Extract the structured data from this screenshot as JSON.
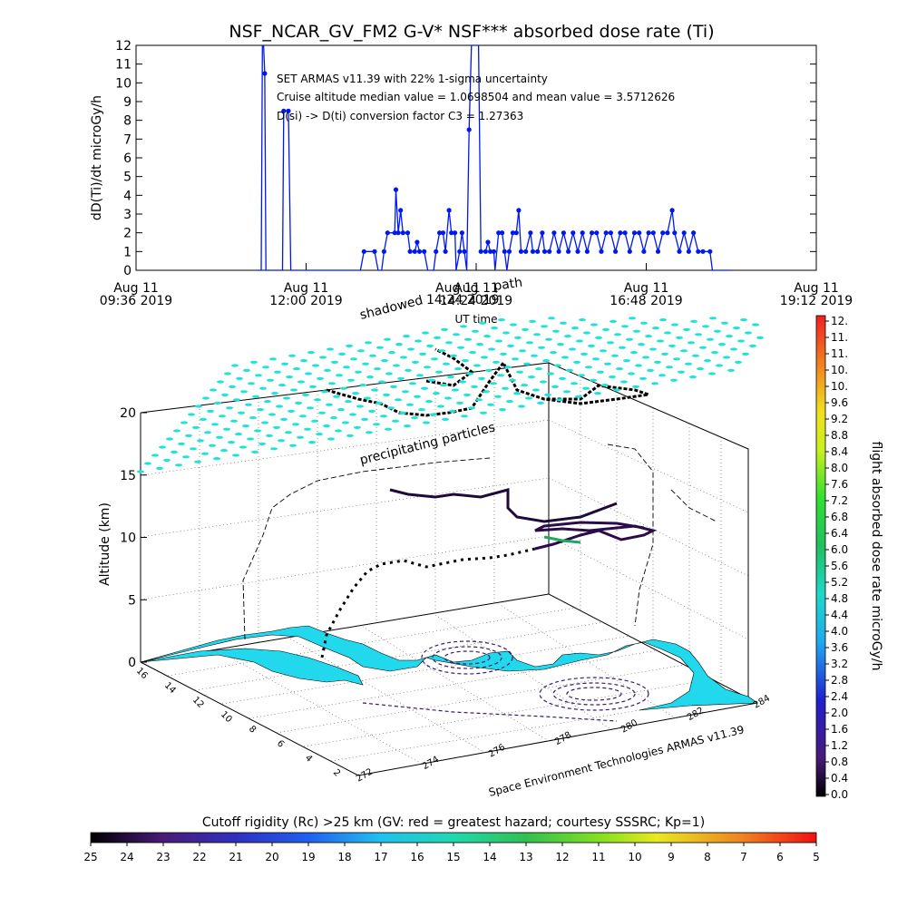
{
  "chart_data": [
    {
      "type": "line",
      "title": "NSF_NCAR_GV_FM2 G-V* NSF*** absorbed dose rate (Ti)",
      "ylabel": "dD(Ti)/dt microGy/h",
      "xlabel": "UT time",
      "ylim": [
        0,
        12
      ],
      "yticks": [
        "0",
        "1",
        "2",
        "3",
        "4",
        "5",
        "6",
        "7",
        "8",
        "9",
        "10",
        "11",
        "12"
      ],
      "xticks": [
        {
          "t": 0,
          "line1": "Aug 11",
          "line2": "09:36 2019"
        },
        {
          "t": 144,
          "line1": "Aug 11",
          "line2": "12:00 2019"
        },
        {
          "t": 288,
          "line1": "Aug 11",
          "line2": "14:24 2019"
        },
        {
          "t": 432,
          "line1": "Aug 11",
          "line2": "16:48 2019"
        },
        {
          "t": 576,
          "line1": "Aug 11",
          "line2": "19:12 2019"
        }
      ],
      "annotations": [
        "SET ARMAS v11.39 with 22% 1-sigma uncertainty",
        "Cruise altitude median value = 1.0698504 and mean value = 3.5712626",
        "D(si) -> D(ti) conversion factor C3 = 1.27363"
      ],
      "overlay_labels": [
        "shadowed",
        "Aug 11",
        "path",
        "14:24 2019"
      ],
      "series": [
        {
          "color": "#0018f0",
          "points": [
            [
              102,
              0
            ],
            [
              106,
              0
            ],
            [
              107,
              12
            ],
            [
              108,
              12
            ],
            [
              109,
              10.5
            ],
            [
              110,
              0
            ],
            [
              118,
              0
            ],
            [
              124,
              0
            ],
            [
              125,
              8.5
            ],
            [
              129,
              8.5
            ],
            [
              131,
              0
            ],
            [
              145,
              0
            ],
            [
              170,
              0
            ],
            [
              190,
              0
            ],
            [
              193,
              1
            ],
            [
              202,
              1
            ],
            [
              205,
              0
            ],
            [
              208,
              0
            ],
            [
              210,
              1
            ],
            [
              213,
              2
            ],
            [
              219,
              2
            ],
            [
              220,
              4.3
            ],
            [
              222,
              2
            ],
            [
              224,
              3.2
            ],
            [
              226,
              2
            ],
            [
              230,
              2
            ],
            [
              232,
              1
            ],
            [
              236,
              1
            ],
            [
              238,
              1.5
            ],
            [
              240,
              1
            ],
            [
              244,
              1
            ],
            [
              247,
              0
            ],
            [
              252,
              0
            ],
            [
              254,
              1
            ],
            [
              257,
              2
            ],
            [
              260,
              2
            ],
            [
              262,
              1
            ],
            [
              265,
              3.2
            ],
            [
              267,
              2
            ],
            [
              270,
              2
            ],
            [
              271,
              0
            ],
            [
              274,
              1
            ],
            [
              276,
              2
            ],
            [
              278,
              1
            ],
            [
              280,
              0
            ],
            [
              282,
              7.5
            ],
            [
              284,
              12
            ],
            [
              286,
              12
            ],
            [
              290,
              12
            ],
            [
              292,
              1
            ],
            [
              296,
              1
            ],
            [
              298,
              1.5
            ],
            [
              300,
              1
            ],
            [
              303,
              1
            ],
            [
              304,
              0
            ],
            [
              307,
              2
            ],
            [
              310,
              2
            ],
            [
              312,
              1
            ],
            [
              314,
              0
            ],
            [
              316,
              1
            ],
            [
              319,
              2
            ],
            [
              322,
              2
            ],
            [
              324,
              3.2
            ],
            [
              326,
              1
            ],
            [
              330,
              1
            ],
            [
              334,
              2
            ],
            [
              336,
              1
            ],
            [
              340,
              1
            ],
            [
              344,
              2
            ],
            [
              346,
              1
            ],
            [
              350,
              1
            ],
            [
              354,
              2
            ],
            [
              358,
              1
            ],
            [
              362,
              2
            ],
            [
              366,
              1
            ],
            [
              370,
              2
            ],
            [
              374,
              1
            ],
            [
              378,
              2
            ],
            [
              382,
              1
            ],
            [
              386,
              2
            ],
            [
              390,
              2
            ],
            [
              394,
              1
            ],
            [
              398,
              2
            ],
            [
              402,
              2
            ],
            [
              406,
              1
            ],
            [
              410,
              2
            ],
            [
              414,
              2
            ],
            [
              418,
              1
            ],
            [
              422,
              2
            ],
            [
              426,
              2
            ],
            [
              430,
              1
            ],
            [
              434,
              2
            ],
            [
              438,
              2
            ],
            [
              442,
              1
            ],
            [
              446,
              2
            ],
            [
              450,
              2
            ],
            [
              454,
              3.2
            ],
            [
              456,
              2
            ],
            [
              460,
              1
            ],
            [
              464,
              2
            ],
            [
              468,
              1
            ],
            [
              472,
              2
            ],
            [
              476,
              1
            ],
            [
              480,
              1
            ],
            [
              486,
              1
            ],
            [
              488,
              0
            ],
            [
              494,
              0
            ],
            [
              504,
              0
            ]
          ]
        }
      ]
    },
    {
      "type": "scatter",
      "zlabel": "Altitude (km)",
      "zticks": [
        "0",
        "5",
        "10",
        "15",
        "20"
      ],
      "lat_ticks": [
        "16",
        "14",
        "12",
        "10",
        "8",
        "6",
        "4",
        "2"
      ],
      "lon_ticks": [
        "272",
        "274",
        "276",
        "278",
        "280",
        "282",
        "284"
      ],
      "labels": [
        "precipitating particles"
      ],
      "credit": "Space Environment Technologies ARMAS v11.39",
      "colorbar": {
        "label": "flight absorbed dose rate microGy/h",
        "ticks": [
          "12.",
          "11.",
          "11.",
          "10.",
          "10.",
          "9.6",
          "9.2",
          "8.8",
          "8.4",
          "8.0",
          "7.6",
          "7.2",
          "6.8",
          "6.4",
          "6.0",
          "5.6",
          "5.2",
          "4.8",
          "4.4",
          "4.0",
          "3.6",
          "3.2",
          "2.8",
          "2.4",
          "2.0",
          "1.6",
          "1.2",
          "0.8",
          "0.4",
          "0.0"
        ]
      }
    },
    {
      "type": "heatmap",
      "title": "Cutoff rigidity (Rc) >25 km (GV: red = greatest hazard; courtesy SSSRC; Kp=1)",
      "colorbar_ticks": [
        "25",
        "24",
        "23",
        "22",
        "21",
        "20",
        "19",
        "18",
        "17",
        "16",
        "15",
        "14",
        "13",
        "12",
        "11",
        "10",
        "9",
        "8",
        "7",
        "6",
        "5"
      ]
    }
  ],
  "colors": {
    "series": "#0018f0",
    "grid_markers": "#1ee4d8",
    "land": "#22d8ec",
    "track": "#200040",
    "axis": "#000000"
  }
}
